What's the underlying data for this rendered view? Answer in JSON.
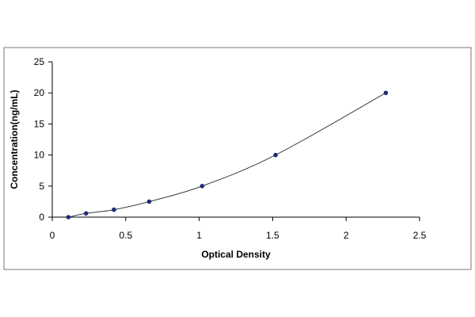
{
  "chart_data": {
    "type": "scatter",
    "title": "",
    "xlabel": "Optical Density",
    "ylabel": "Concentration(ng/mL)",
    "xlim": [
      0,
      2.5
    ],
    "ylim": [
      0,
      25
    ],
    "x_ticks": [
      "0",
      "0.5",
      "1",
      "1.5",
      "2",
      "2.5"
    ],
    "y_ticks": [
      "0",
      "5",
      "10",
      "15",
      "20",
      "25"
    ],
    "grid": false,
    "legend": "none",
    "fit_curve": "smooth curve through points",
    "series": [
      {
        "points": [
          {
            "x": 0.11,
            "y": 0
          },
          {
            "x": 0.23,
            "y": 0.6
          },
          {
            "x": 0.42,
            "y": 1.2
          },
          {
            "x": 0.66,
            "y": 2.5
          },
          {
            "x": 1.02,
            "y": 5
          },
          {
            "x": 1.52,
            "y": 10
          },
          {
            "x": 2.27,
            "y": 20
          }
        ]
      }
    ],
    "colors": {
      "marker": "#1f2a78",
      "curve": "#3c3c3c",
      "axis": "#000000",
      "frame": "#7a7a7a"
    }
  }
}
